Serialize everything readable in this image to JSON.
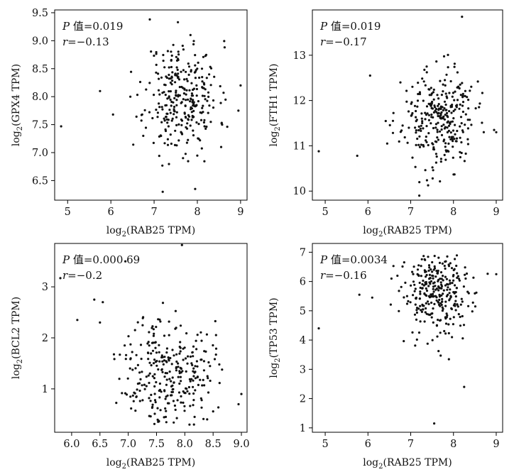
{
  "chart_data": [
    {
      "type": "scatter",
      "xlabel": {
        "prefix": "log",
        "sub": "2",
        "text": "(RAB25 TPM)"
      },
      "ylabel": {
        "prefix": "log",
        "sub": "2",
        "text": "(GPX4 TPM)"
      },
      "annotation": {
        "p_label": "P",
        "p_text": " 值=0.019",
        "r_label": "r",
        "r_text": "=−0.13"
      },
      "xlim": [
        4.7,
        9.15
      ],
      "ylim": [
        6.15,
        9.55
      ],
      "xticks": [
        "5",
        "6",
        "7",
        "8",
        "9"
      ],
      "yticks": [
        "6.5",
        "7.0",
        "7.5",
        "8.0",
        "8.5",
        "9.0",
        "9.5"
      ],
      "cluster": {
        "center_x": 7.65,
        "center_y": 8.0,
        "spread_x": 0.42,
        "spread_y": 0.5,
        "count": 300,
        "min_x": 6.3,
        "max_x": 8.9,
        "min_y": 6.6,
        "max_y": 9.2
      },
      "outliers": [
        [
          4.85,
          7.47
        ],
        [
          5.75,
          8.1
        ],
        [
          6.05,
          7.68
        ],
        [
          7.2,
          6.3
        ],
        [
          7.95,
          6.35
        ],
        [
          7.55,
          9.33
        ],
        [
          6.9,
          9.38
        ],
        [
          8.55,
          7.1
        ],
        [
          9.0,
          8.2
        ],
        [
          8.95,
          7.75
        ],
        [
          6.45,
          8.0
        ],
        [
          6.75,
          7.3
        ]
      ],
      "seed": 11
    },
    {
      "type": "scatter",
      "xlabel": {
        "prefix": "log",
        "sub": "2",
        "text": "(RAB25 TPM)"
      },
      "ylabel": {
        "prefix": "log",
        "sub": "2",
        "text": "(FTH1 TPM)"
      },
      "annotation": {
        "p_label": "P",
        "p_text": " 值=0.019",
        "r_label": "r",
        "r_text": "=−0.17"
      },
      "xlim": [
        4.7,
        9.15
      ],
      "ylim": [
        9.8,
        14.0
      ],
      "xticks": [
        "5",
        "6",
        "7",
        "8",
        "9"
      ],
      "yticks": [
        "10",
        "11",
        "12",
        "13"
      ],
      "cluster": {
        "center_x": 7.65,
        "center_y": 11.6,
        "spread_x": 0.42,
        "spread_y": 0.55,
        "count": 300,
        "min_x": 6.3,
        "max_x": 8.9,
        "min_y": 10.1,
        "max_y": 13.2
      },
      "outliers": [
        [
          4.85,
          10.88
        ],
        [
          5.75,
          10.78
        ],
        [
          6.05,
          12.55
        ],
        [
          8.2,
          13.85
        ],
        [
          7.2,
          9.9
        ],
        [
          8.95,
          11.35
        ],
        [
          9.0,
          11.3
        ],
        [
          6.45,
          11.05
        ]
      ],
      "seed": 23
    },
    {
      "type": "scatter",
      "xlabel": {
        "prefix": "log",
        "sub": "2",
        "text": "(RAB25 TPM)"
      },
      "ylabel": {
        "prefix": "log",
        "sub": "2",
        "text": "(BCL2 TPM)"
      },
      "annotation": {
        "p_label": "P",
        "p_text": " 值=0.000 69",
        "r_label": "r",
        "r_text": "=−0.2"
      },
      "xlim": [
        5.7,
        9.1
      ],
      "ylim": [
        0.15,
        3.85
      ],
      "xticks": [
        "6.0",
        "6.5",
        "7.0",
        "7.5",
        "8.0",
        "8.5",
        "9.0"
      ],
      "yticks": [
        "1",
        "2",
        "3"
      ],
      "cluster": {
        "center_x": 7.7,
        "center_y": 1.35,
        "spread_x": 0.4,
        "spread_y": 0.55,
        "count": 300,
        "min_x": 6.7,
        "max_x": 8.85,
        "min_y": 0.3,
        "max_y": 2.9
      },
      "outliers": [
        [
          5.8,
          3.17
        ],
        [
          6.95,
          3.5
        ],
        [
          7.95,
          3.82
        ],
        [
          6.1,
          2.35
        ],
        [
          6.4,
          2.75
        ],
        [
          6.55,
          2.7
        ],
        [
          9.0,
          0.9
        ],
        [
          8.95,
          0.7
        ],
        [
          6.5,
          2.3
        ]
      ],
      "seed": 37
    },
    {
      "type": "scatter",
      "xlabel": {
        "prefix": "log",
        "sub": "2",
        "text": "(RAB25 TPM)"
      },
      "ylabel": {
        "prefix": "log",
        "sub": "2",
        "text": "(TP53 TPM)"
      },
      "annotation": {
        "p_label": "P",
        "p_text": " 值=0.0034",
        "r_label": "r",
        "r_text": "=−0.16"
      },
      "xlim": [
        4.7,
        9.15
      ],
      "ylim": [
        0.85,
        7.3
      ],
      "xticks": [
        "5",
        "6",
        "7",
        "8",
        "9"
      ],
      "yticks": [
        "1",
        "2",
        "3",
        "4",
        "5",
        "6",
        "7"
      ],
      "cluster": {
        "center_x": 7.65,
        "center_y": 5.6,
        "spread_x": 0.42,
        "spread_y": 0.75,
        "count": 300,
        "min_x": 6.3,
        "max_x": 8.9,
        "min_y": 2.2,
        "max_y": 7.05
      },
      "outliers": [
        [
          4.85,
          4.4
        ],
        [
          5.8,
          5.55
        ],
        [
          6.1,
          5.45
        ],
        [
          7.55,
          1.15
        ],
        [
          6.55,
          6.1
        ],
        [
          9.0,
          6.25
        ],
        [
          8.25,
          2.4
        ]
      ],
      "seed": 53
    }
  ]
}
